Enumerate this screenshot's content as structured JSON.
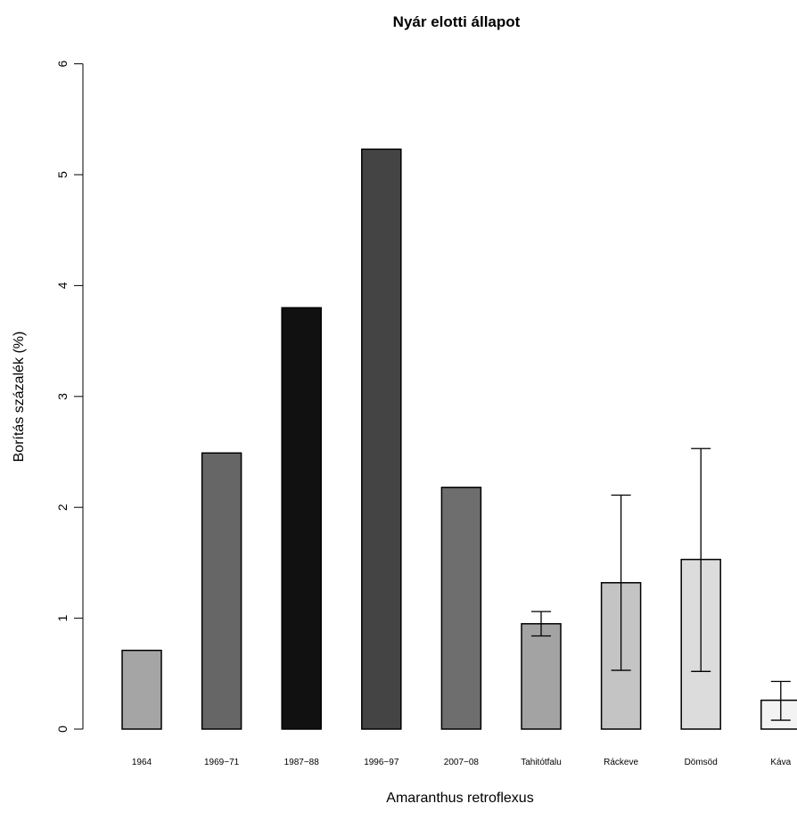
{
  "chart_data": {
    "type": "bar",
    "title": "Nyár elotti állapot",
    "xlabel": "Amaranthus retroflexus",
    "ylabel": "Borítás százalék (%)",
    "ylim": [
      0,
      6
    ],
    "yticks": [
      "0",
      "1",
      "2",
      "3",
      "4",
      "5",
      "6"
    ],
    "grid": false,
    "legend": "none",
    "categories": [
      "1964",
      "1969−71",
      "1987−88",
      "1996−97",
      "2007−08",
      "Tahitótfalu",
      "Ráckeve",
      "Dömsöd",
      "Káva"
    ],
    "values": [
      0.71,
      2.49,
      3.8,
      5.23,
      2.18,
      0.95,
      1.32,
      1.53,
      0.26
    ],
    "error_bars": [
      null,
      null,
      null,
      null,
      null,
      {
        "low": 0.84,
        "high": 1.06
      },
      {
        "low": 0.53,
        "high": 2.11
      },
      {
        "low": 0.52,
        "high": 2.53
      },
      {
        "low": 0.08,
        "high": 0.43
      }
    ],
    "bar_colors": [
      "#a5a5a5",
      "#666666",
      "#111111",
      "#444444",
      "#6e6e6e",
      "#a3a3a3",
      "#c4c4c4",
      "#dcdcdc",
      "#f3f3f3"
    ]
  }
}
